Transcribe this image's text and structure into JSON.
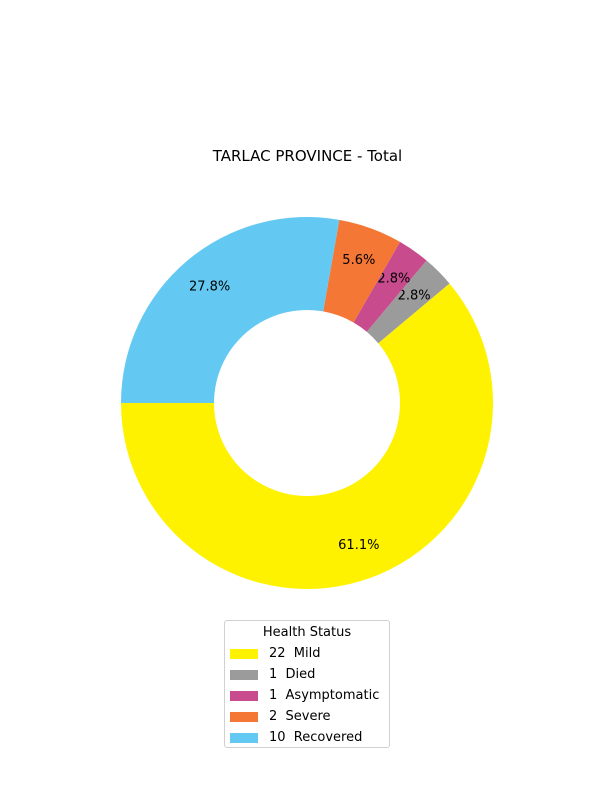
{
  "chart_data": {
    "type": "pie",
    "title": "TARLAC PROVINCE - Total",
    "legend_title": "Health Status",
    "legend_placement": "bottom-center",
    "donut": true,
    "slices": [
      {
        "label": "22  Mild",
        "value": 22,
        "pct_label": "61.1%",
        "color": "#fef200"
      },
      {
        "label": "1  Died",
        "value": 1,
        "pct_label": "2.8%",
        "color": "#9b9b9b"
      },
      {
        "label": "1  Asymptomatic",
        "value": 1,
        "pct_label": "2.8%",
        "color": "#c84b8d"
      },
      {
        "label": "2  Severe",
        "value": 2,
        "pct_label": "5.6%",
        "color": "#f47736"
      },
      {
        "label": "10  Recovered",
        "value": 10,
        "pct_label": "27.8%",
        "color": "#63c9f3"
      }
    ]
  }
}
